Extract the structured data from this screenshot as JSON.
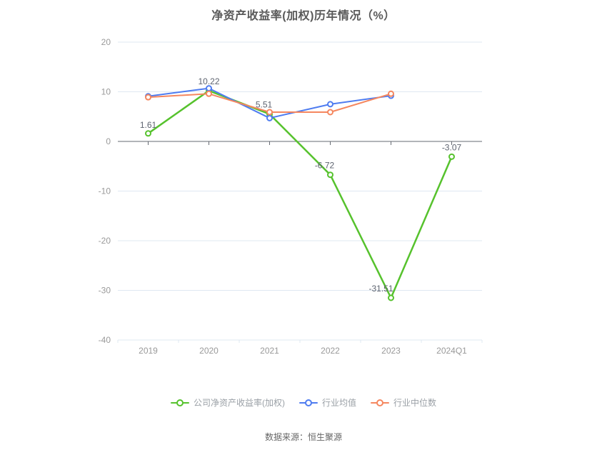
{
  "header": {
    "title": "净资产收益率(加权)历年情况（%）"
  },
  "footer": {
    "source": "数据来源：恒生聚源"
  },
  "colors": {
    "company": "#56c22d",
    "industry_avg": "#4e7cf0",
    "industry_median": "#f5875f",
    "grid_line": "#dfe8f2",
    "axis_line": "#666b73",
    "tick_text": "#999999",
    "data_label_text": "#5e6470",
    "legend_text": "#9aa0a6",
    "title_text": "#595959"
  },
  "chart_data": {
    "type": "line",
    "title": "净资产收益率(加权)历年情况（%）",
    "categories": [
      "2019",
      "2020",
      "2021",
      "2022",
      "2023",
      "2024Q1"
    ],
    "series": [
      {
        "name": "公司净资产收益率(加权)",
        "color": "#56c22d",
        "values": [
          1.61,
          10.22,
          5.51,
          -6.72,
          -31.51,
          -3.07
        ],
        "point_labels": [
          "1.61",
          "10.22",
          "5.51",
          "-6.72",
          "-31.51",
          "-3.07"
        ]
      },
      {
        "name": "行业均值",
        "color": "#4e7cf0",
        "values": [
          9.1,
          10.7,
          4.7,
          7.5,
          9.2,
          null
        ],
        "point_labels": null
      },
      {
        "name": "行业中位数",
        "color": "#f5875f",
        "values": [
          8.9,
          9.6,
          5.9,
          5.9,
          9.6,
          null
        ],
        "point_labels": null
      }
    ],
    "ylim": [
      -40,
      20
    ],
    "yticks": [
      20,
      10,
      0,
      -10,
      -20,
      -30,
      -40
    ],
    "grid": true,
    "legend_position": "bottom"
  }
}
